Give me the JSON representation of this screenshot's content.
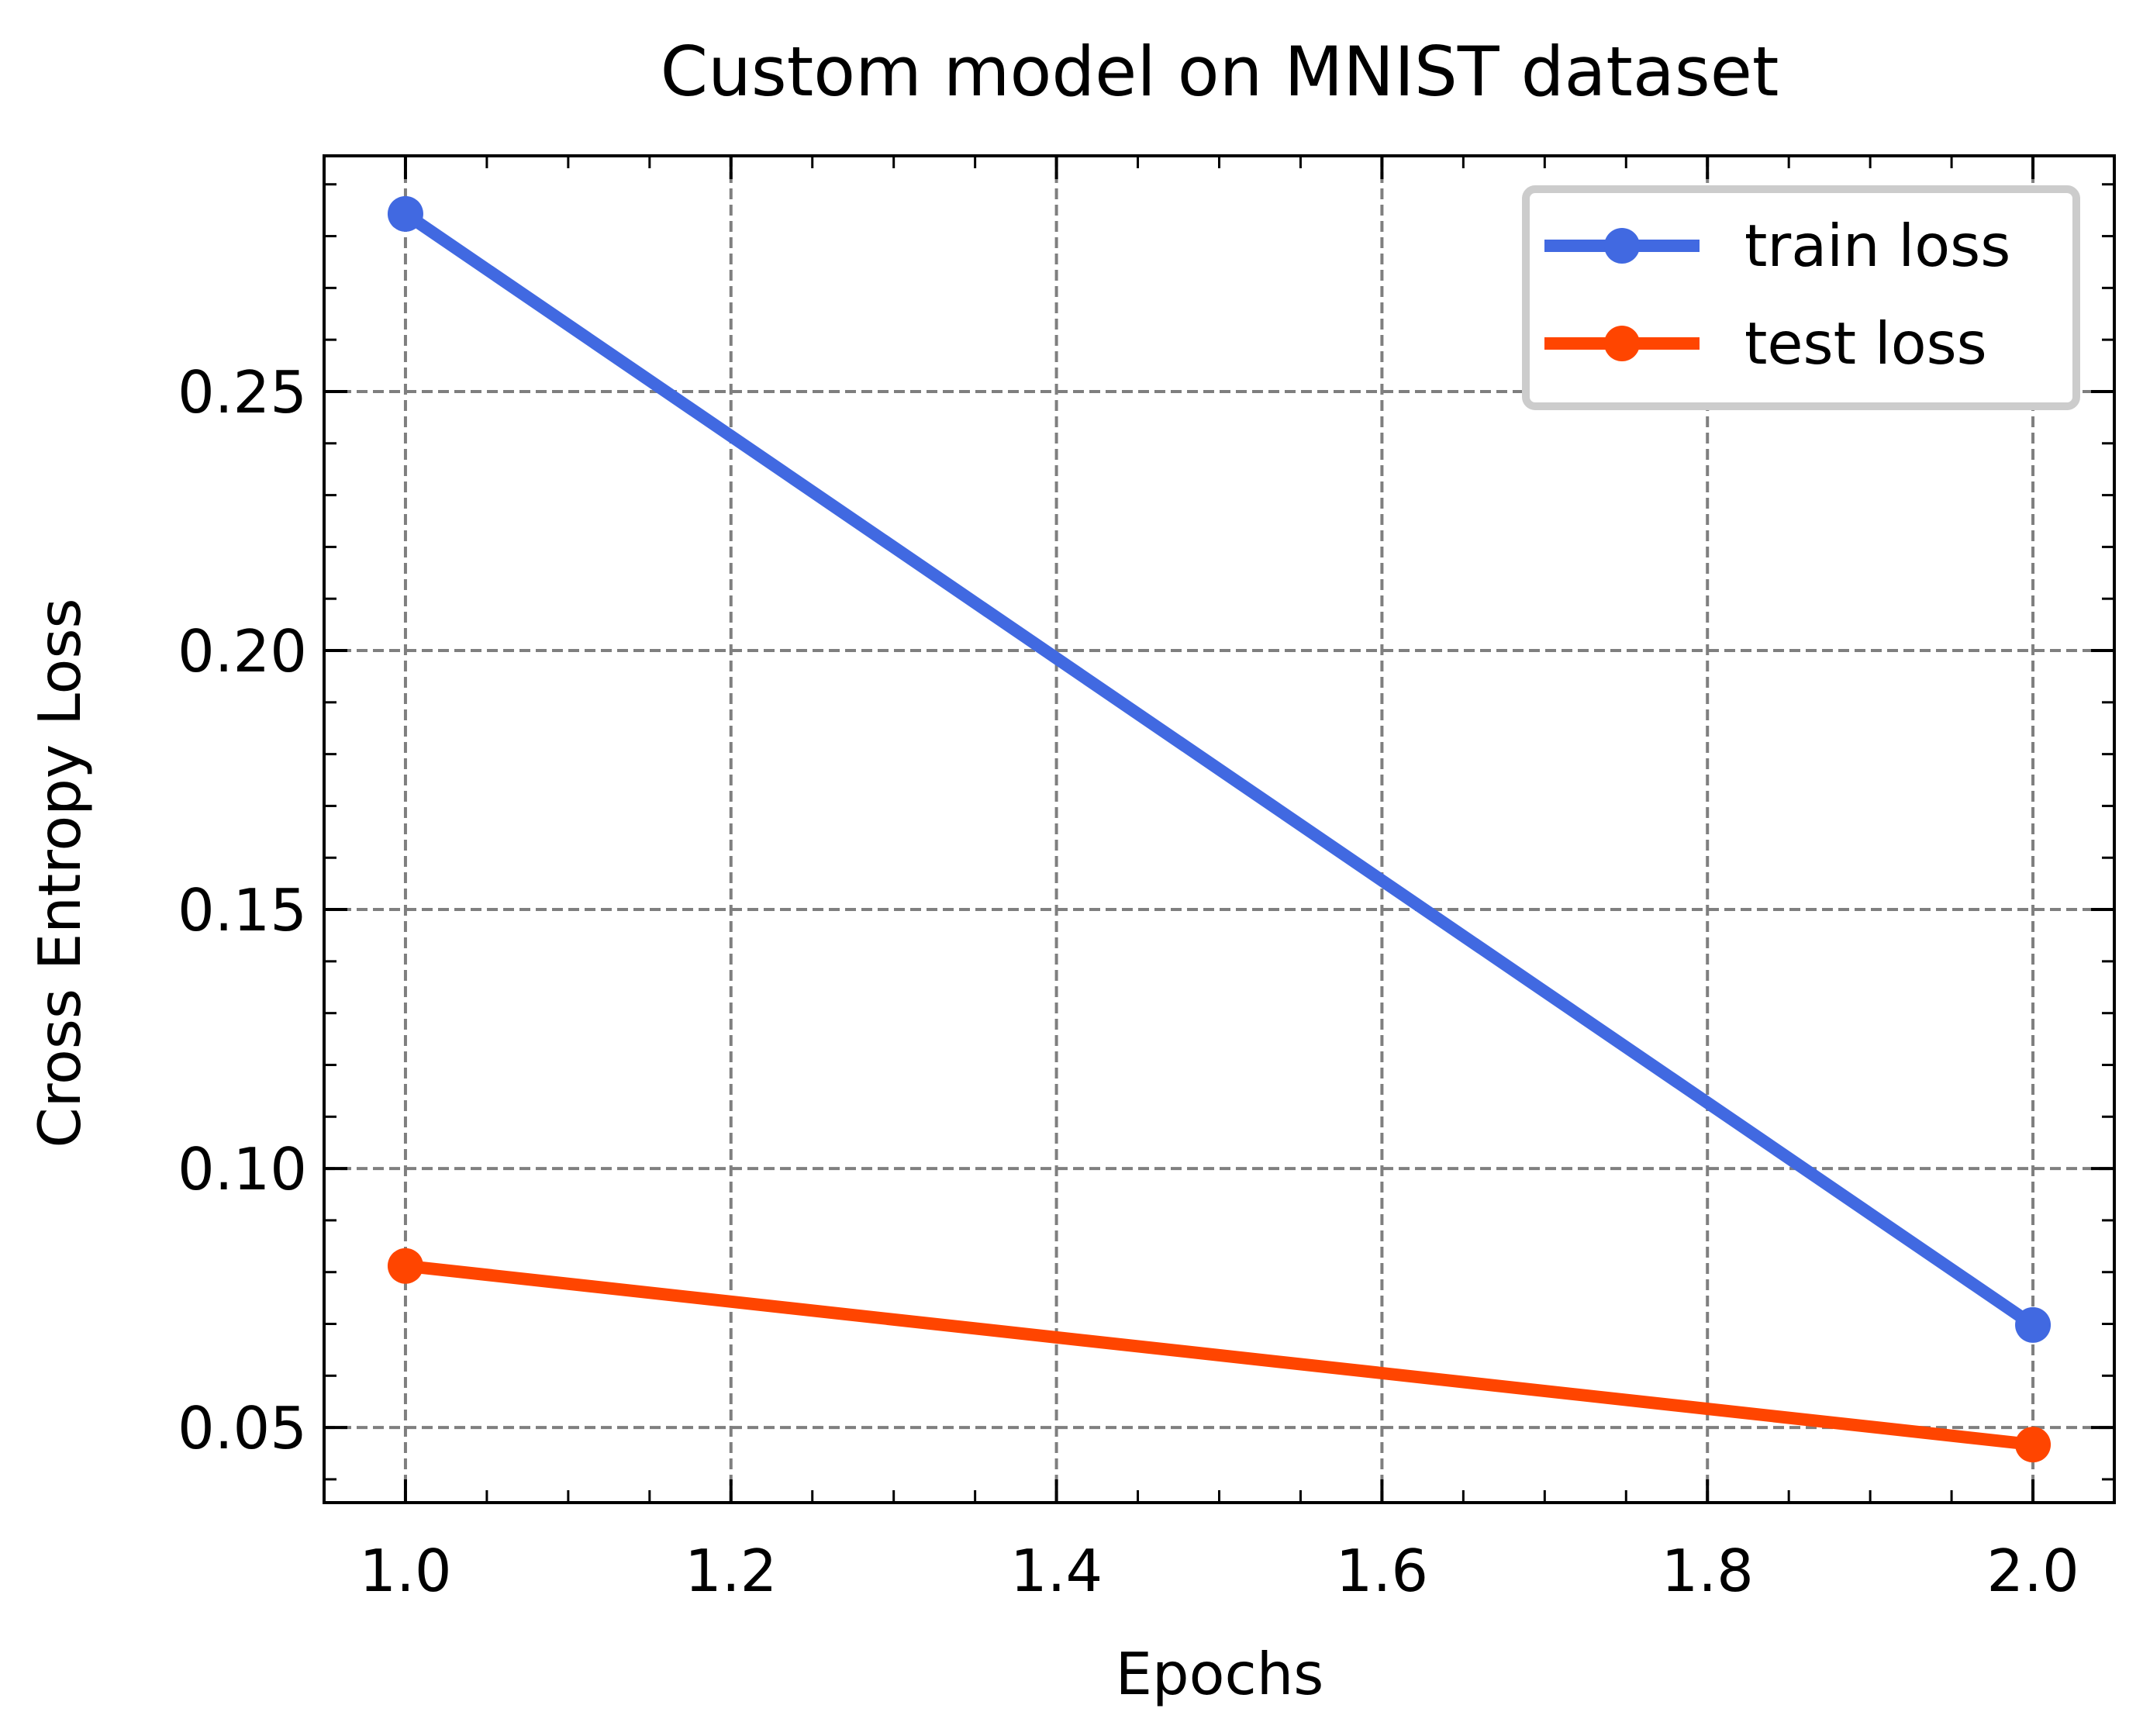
{
  "chart_data": {
    "type": "line",
    "title": "Custom model on MNIST dataset",
    "xlabel": "Epochs",
    "ylabel": "Cross Entropy Loss",
    "x": [
      1.0,
      2.0
    ],
    "xlim": [
      0.95,
      2.05
    ],
    "ylim": [
      0.0355,
      0.2955
    ],
    "xticks": [
      1.0,
      1.2,
      1.4,
      1.6,
      1.8,
      2.0
    ],
    "xtick_labels": [
      "1.0",
      "1.2",
      "1.4",
      "1.6",
      "1.8",
      "2.0"
    ],
    "yticks": [
      0.05,
      0.1,
      0.15,
      0.2,
      0.25
    ],
    "ytick_labels": [
      "0.05",
      "0.10",
      "0.15",
      "0.20",
      "0.25"
    ],
    "grid": true,
    "legend_position": "top-right",
    "series": [
      {
        "name": "train loss",
        "values": [
          0.2843,
          0.0698
        ],
        "color": "#4169e1"
      },
      {
        "name": "test loss",
        "values": [
          0.0812,
          0.0467
        ],
        "color": "#ff4500"
      }
    ]
  }
}
